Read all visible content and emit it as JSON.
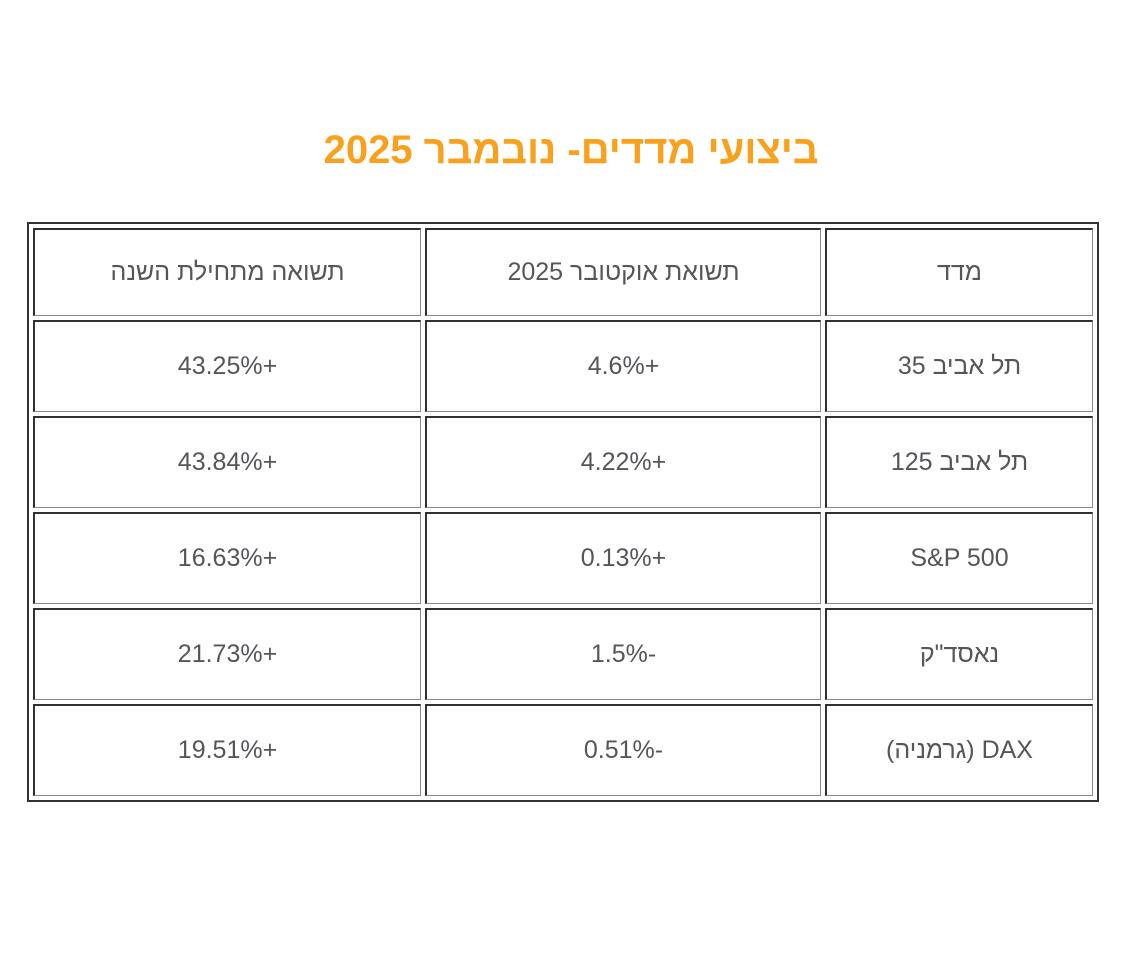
{
  "page": {
    "background_color": "#ffffff",
    "direction": "rtl",
    "language": "he"
  },
  "title": {
    "text": "ביצועי מדדים- נובמבר 2025",
    "color": "#F9A11C"
  },
  "table": {
    "text_color": "#54565a",
    "border_dark_color": "#2e3032",
    "border_light_color": "#8a8a8a",
    "headers": {
      "index": "מדד",
      "october_return": "תשואת אוקטובר 2025",
      "ytd_return": "תשואה מתחילת השנה"
    },
    "rows": [
      {
        "index": "תל אביב 35",
        "october_return": "+4.6%",
        "ytd_return": "+43.25%"
      },
      {
        "index": "תל אביב 125",
        "october_return": "+4.22%",
        "ytd_return": "+43.84%"
      },
      {
        "index": "S&P 500",
        "october_return": "+0.13%",
        "ytd_return": "+16.63%"
      },
      {
        "index": "נאסד\"ק",
        "october_return": "-1.5%",
        "ytd_return": "+21.73%"
      },
      {
        "index": "DAX (גרמניה)",
        "october_return": "-0.51%",
        "ytd_return": "+19.51%"
      }
    ]
  },
  "chart_data": {
    "type": "table",
    "title": "ביצועי מדדים- נובמבר 2025",
    "columns": [
      "מדד",
      "תשואת אוקטובר 2025",
      "תשואה מתחילת השנה"
    ],
    "rows": [
      [
        "תל אביב 35",
        "+4.6%",
        "+43.25%"
      ],
      [
        "תל אביב 125",
        "+4.22%",
        "+43.84%"
      ],
      [
        "S&P 500",
        "+0.13%",
        "+16.63%"
      ],
      [
        "נאסד\"ק",
        "-1.5%",
        "+21.73%"
      ],
      [
        "DAX (גרמניה)",
        "-0.51%",
        "+19.51%"
      ]
    ],
    "numeric_series": [
      {
        "name": "תשואת אוקטובר 2025 (%)",
        "values": [
          4.6,
          4.22,
          0.13,
          -1.5,
          -0.51
        ]
      },
      {
        "name": "תשואה מתחילת השנה (%)",
        "values": [
          43.25,
          43.84,
          16.63,
          21.73,
          19.51
        ]
      }
    ]
  }
}
